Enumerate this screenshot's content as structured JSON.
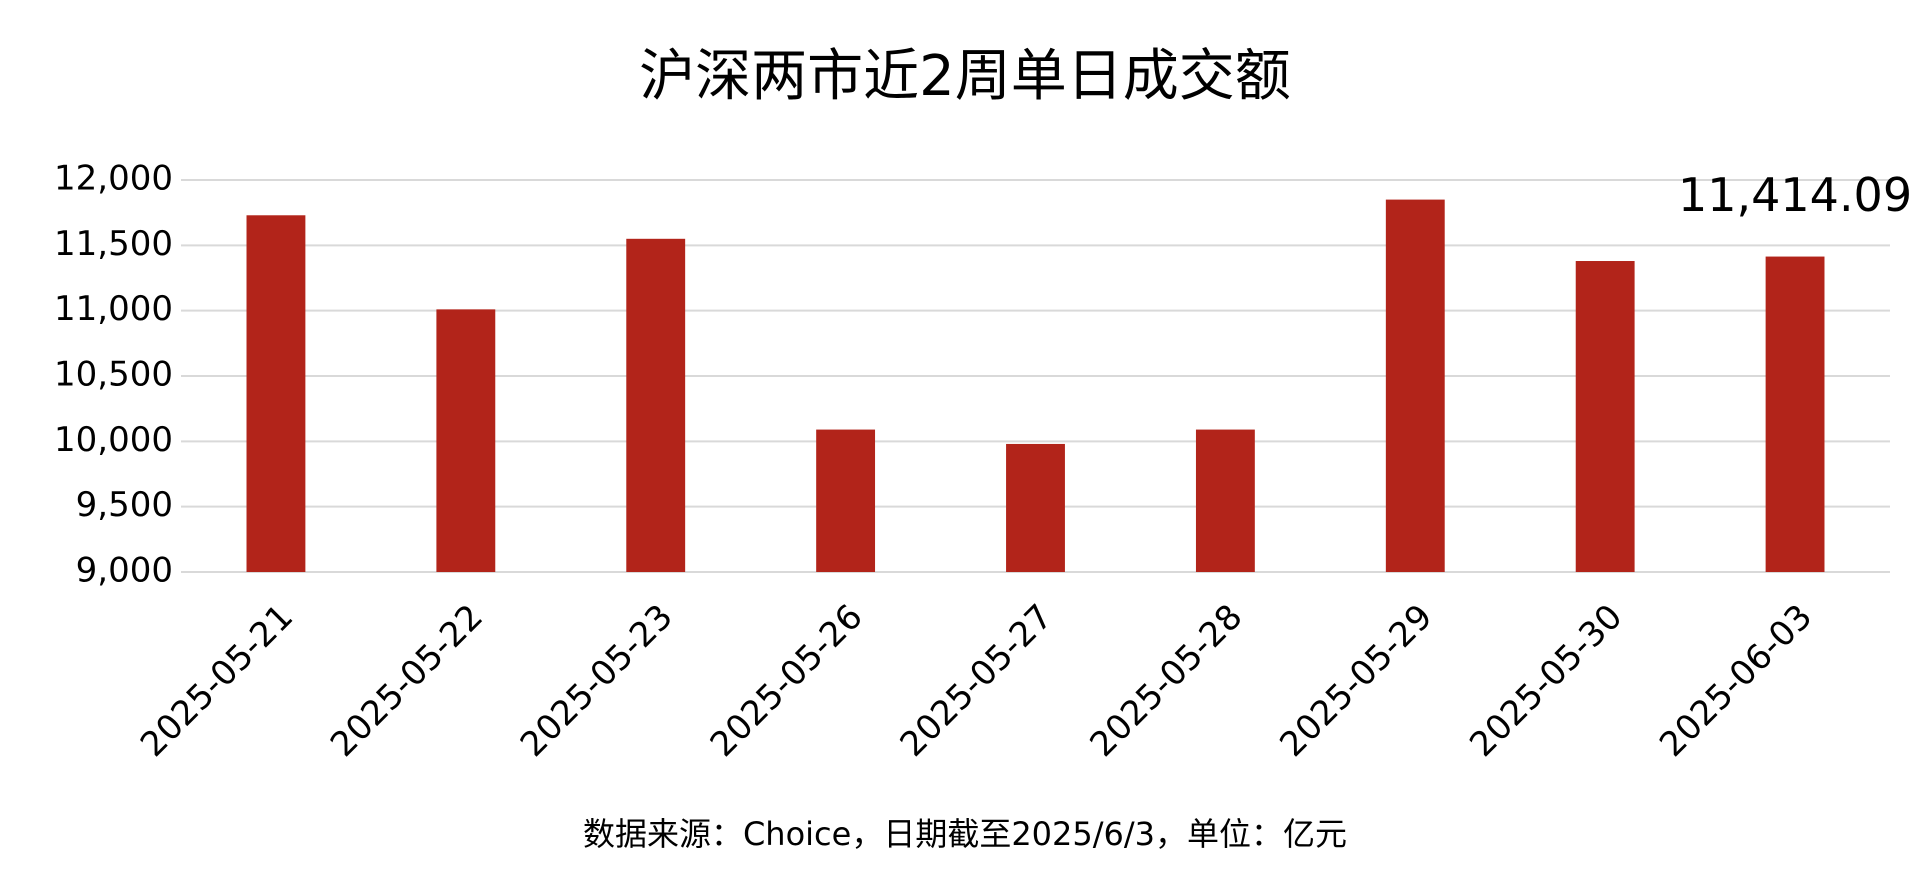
{
  "chart_data": {
    "type": "bar",
    "title": "沪深两市近2周单日成交额",
    "source": "数据来源：Choice，日期截至2025/6/3，单位：亿元",
    "categories": [
      "2025-05-21",
      "2025-05-22",
      "2025-05-23",
      "2025-05-26",
      "2025-05-27",
      "2025-05-28",
      "2025-05-29",
      "2025-05-30",
      "2025-06-03"
    ],
    "values": [
      11730,
      11010,
      11550,
      10090,
      9980,
      10090,
      11850,
      11380,
      11414.09
    ],
    "value_labels": [
      null,
      null,
      null,
      null,
      null,
      null,
      null,
      null,
      "11,414.09"
    ],
    "color": "#b2241a",
    "ylim": [
      9000,
      12000
    ],
    "yticks": [
      {
        "value": 9000,
        "label": "9,000"
      },
      {
        "value": 9500,
        "label": "9,500"
      },
      {
        "value": 10000,
        "label": "10,000"
      },
      {
        "value": 10500,
        "label": "10,500"
      },
      {
        "value": 11000,
        "label": "11,000"
      },
      {
        "value": 11500,
        "label": "11,500"
      },
      {
        "value": 12000,
        "label": "12,000"
      }
    ],
    "grid": true
  }
}
